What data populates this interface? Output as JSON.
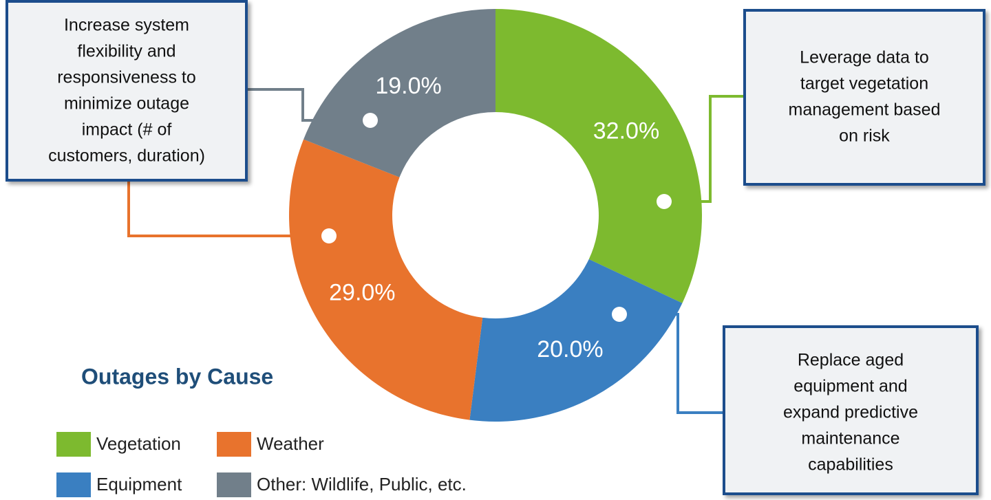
{
  "chart_data": {
    "type": "donut",
    "title": "Outages by Cause",
    "categories": [
      "Vegetation",
      "Equipment",
      "Weather",
      "Other: Wildlife, Public, etc."
    ],
    "values": [
      32,
      20,
      29,
      19
    ],
    "value_labels": [
      "32.0%",
      "20.0%",
      "29.0%",
      "19.0%"
    ],
    "colors": [
      "#7dba2f",
      "#3a7fc1",
      "#e8732d",
      "#717f8a"
    ],
    "annotations": [
      {
        "lines": [
          "Leverage data to",
          "target vegetation",
          "management based",
          "on risk"
        ]
      },
      {
        "lines": [
          "Replace aged",
          "equipment and",
          "expand predictive",
          "maintenance",
          "capabilities"
        ]
      },
      {
        "lines": [
          "Increase system",
          "flexibility and",
          "responsiveness to",
          "minimize outage",
          "impact (# of",
          "customers, duration)"
        ]
      }
    ]
  }
}
